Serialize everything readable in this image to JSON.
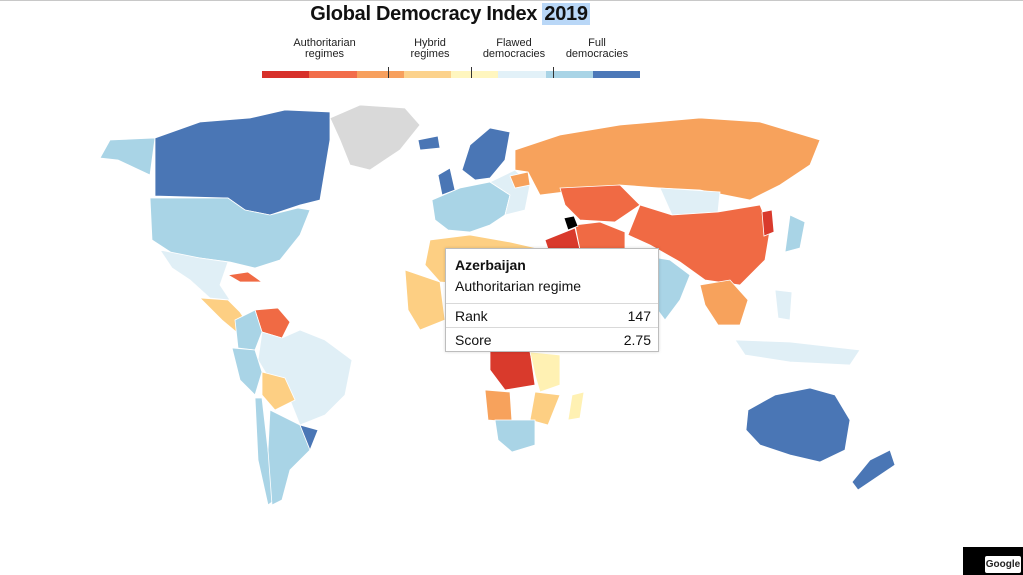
{
  "title": {
    "text": "Global Democracy Index",
    "year": "2019"
  },
  "legend": {
    "labels": [
      "Authoritarian\nregimes",
      "Hybrid\nregimes",
      "Flawed\ndemocracies",
      "Full\ndemocracies"
    ],
    "colors": [
      "#d7302a",
      "#f26d4a",
      "#f7a05e",
      "#fcd28c",
      "#fff6bf",
      "#e2f1f8",
      "#a9d4e6",
      "#4c78b8"
    ]
  },
  "colors": {
    "no_data": "#d9d9d9",
    "full": "#4a76b5",
    "flawed_high": "#a9d4e6",
    "flawed_low": "#e0eff6",
    "hybrid_high": "#fff1b3",
    "hybrid_low": "#fdcf83",
    "auth_high": "#f7a25c",
    "auth_mid": "#f06a44",
    "auth_low": "#d93a2c",
    "highlight": "#000000"
  },
  "tooltip": {
    "country": "Azerbaijan",
    "regime": "Authoritarian regime",
    "rank_label": "Rank",
    "rank_value": "147",
    "score_label": "Score",
    "score_value": "2.75"
  },
  "attribution": "Google"
}
